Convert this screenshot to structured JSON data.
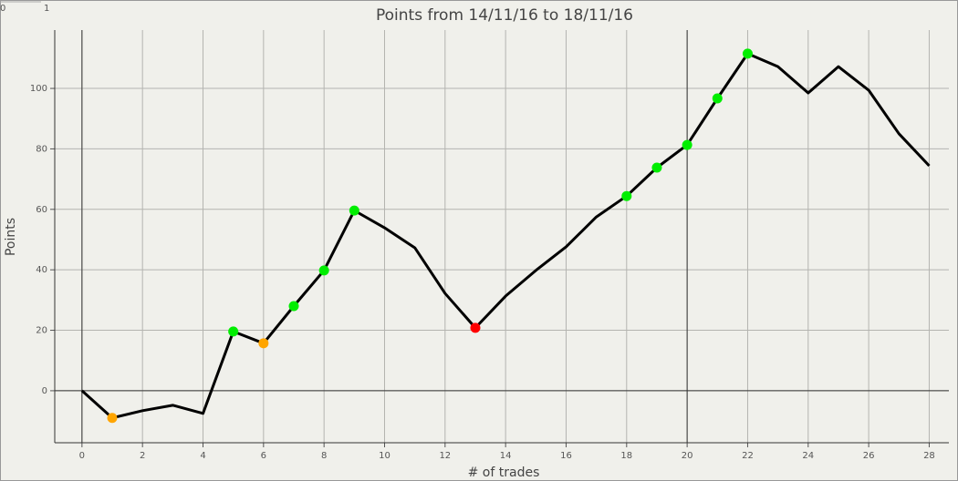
{
  "slider": {
    "labels": [
      "0",
      "1"
    ]
  },
  "chart_data": {
    "type": "line",
    "title": "Points from 14/11/16 to 18/11/16",
    "x_label": "# of trades",
    "y_label": "Points",
    "x": [
      0,
      1,
      2,
      3,
      4,
      5,
      6,
      7,
      8,
      9,
      10,
      11,
      12,
      13,
      14,
      15,
      16,
      17,
      18,
      19,
      20,
      21,
      22,
      23,
      24,
      25,
      26,
      27,
      28
    ],
    "series": [
      {
        "name": "Points",
        "color": "#000000",
        "values": [
          0,
          -9,
          -6.6,
          -4.8,
          -7.5,
          19.6,
          15.7,
          28,
          39.8,
          59.6,
          53.9,
          47.3,
          32.2,
          20.8,
          31.3,
          39.8,
          47.6,
          57.5,
          64.4,
          73.8,
          81.3,
          96.7,
          111.5,
          107.2,
          98.5,
          107.2,
          99.4,
          85,
          74.4
        ],
        "point_colors": [
          null,
          "#ffa500",
          null,
          null,
          null,
          "#00ee00",
          "#ffa500",
          "#00ee00",
          "#00ee00",
          "#00ee00",
          null,
          null,
          null,
          "#ff0000",
          null,
          null,
          null,
          null,
          "#00ee00",
          "#00ee00",
          "#00ee00",
          "#00ee00",
          "#00ee00",
          null,
          null,
          null,
          null,
          null,
          null
        ]
      }
    ],
    "xlim": [
      -0.9,
      28.65
    ],
    "ylim": [
      -17.2,
      119.3
    ],
    "xticks": [
      0,
      2,
      4,
      6,
      8,
      10,
      12,
      14,
      16,
      18,
      20,
      22,
      24,
      26,
      28
    ],
    "yticks": [
      0,
      20,
      40,
      60,
      80,
      100
    ],
    "grid": true,
    "highlight_x_lines": [
      0,
      20
    ],
    "highlight_y_lines": [
      0
    ]
  }
}
